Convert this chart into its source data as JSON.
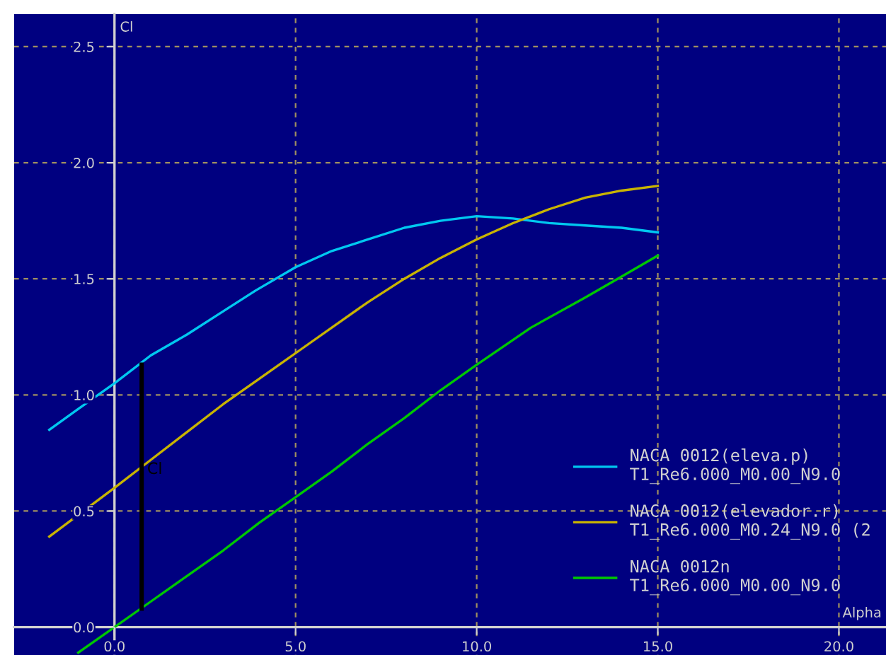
{
  "chart_data": {
    "type": "line",
    "xlabel": "Alpha",
    "ylabel": "Cl",
    "xlim": [
      -2.77,
      21.3
    ],
    "ylim": [
      -0.12,
      2.64
    ],
    "xticks": [
      {
        "value": 0,
        "label": "0.0"
      },
      {
        "value": 5,
        "label": "5.0"
      },
      {
        "value": 10,
        "label": "10.0"
      },
      {
        "value": 15,
        "label": "15.0"
      },
      {
        "value": 20,
        "label": "20.0"
      }
    ],
    "yticks": [
      {
        "value": 0,
        "label": "0.0"
      },
      {
        "value": 0.5,
        "label": "0.5"
      },
      {
        "value": 1,
        "label": "1.0"
      },
      {
        "value": 1.5,
        "label": "1.5"
      },
      {
        "value": 2,
        "label": "2.0"
      },
      {
        "value": 2.5,
        "label": "2.5"
      }
    ],
    "grid": true,
    "legend": "bottom right",
    "line_style": "solid",
    "marker": "none",
    "series": [
      {
        "name": "NACA 0012(eleva.p)\nT1_Re6.000_M0.00_N9.0",
        "color": "#00c8f0",
        "x": [
          -1.8,
          -1,
          0,
          1,
          2,
          3,
          3.9,
          5,
          6,
          7,
          8,
          9,
          10,
          11,
          12,
          13,
          14,
          15
        ],
        "values": [
          0.85,
          0.94,
          1.05,
          1.17,
          1.26,
          1.36,
          1.45,
          1.55,
          1.62,
          1.67,
          1.72,
          1.75,
          1.77,
          1.76,
          1.74,
          1.73,
          1.72,
          1.7
        ]
      },
      {
        "name": "NACA 0012(elevador.r)\nT1_Re6.000_M0.24_N9.0 (2",
        "color": "#c8b400",
        "x": [
          -1.8,
          0,
          1,
          2,
          3,
          4,
          5,
          6,
          7,
          8,
          9,
          10,
          11,
          12,
          13,
          14,
          15
        ],
        "values": [
          0.39,
          0.6,
          0.72,
          0.84,
          0.96,
          1.07,
          1.18,
          1.29,
          1.4,
          1.5,
          1.59,
          1.67,
          1.74,
          1.8,
          1.85,
          1.88,
          1.9
        ]
      },
      {
        "name": "NACA 0012n\nT1_Re6.000_M0.00_N9.0",
        "color": "#00c800",
        "x": [
          -1,
          0,
          1,
          2,
          3,
          4,
          5,
          6,
          7,
          8,
          9,
          10,
          11.5,
          13,
          14,
          15
        ],
        "values": [
          -0.11,
          0.0,
          0.11,
          0.22,
          0.33,
          0.45,
          0.56,
          0.67,
          0.79,
          0.9,
          1.02,
          1.13,
          1.29,
          1.42,
          1.51,
          1.6
        ]
      },
      {
        "color": "#000000",
        "x": [
          0.75,
          0.75
        ],
        "values": [
          0.08,
          1.13
        ]
      }
    ],
    "annotations": [
      {
        "text": "Cl",
        "x": 0.9,
        "y": 0.66
      }
    ]
  }
}
